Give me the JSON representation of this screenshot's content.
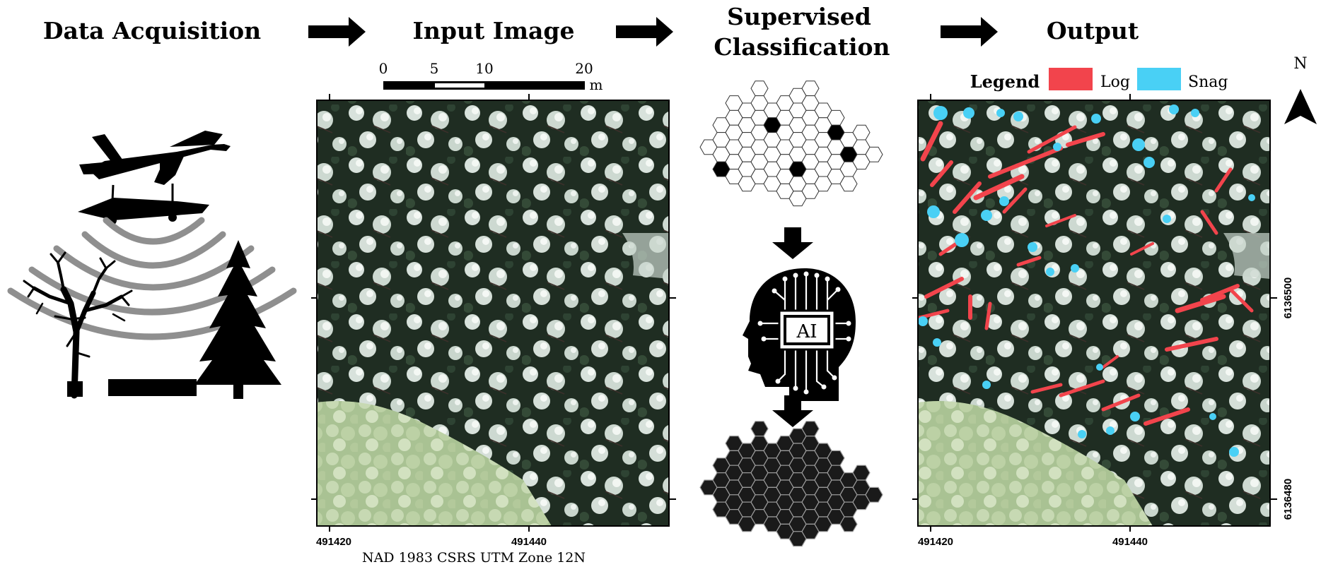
{
  "headers": {
    "data_acquisition": "Data Acquisition",
    "input_image": "Input Image",
    "supervised_line1": "Supervised",
    "supervised_line2": "Classification",
    "output": "Output"
  },
  "scale_bar": {
    "ticks": [
      "0",
      "5",
      "10",
      "20"
    ],
    "unit": "m"
  },
  "x_ticks": [
    "491420",
    "491440"
  ],
  "y_ticks": [
    "6136500",
    "6136480"
  ],
  "projection": "NAD 1983 CSRS UTM Zone 12N",
  "ai_chip_text": "AI",
  "legend": {
    "title": "Legend",
    "items": [
      {
        "label": "Log",
        "color": "#f2444c"
      },
      {
        "label": "Snag",
        "color": "#49d0f5"
      }
    ]
  },
  "north_label": "N",
  "colors": {
    "arrow": "#000000",
    "forest_dark": "#1c2a1f",
    "canopy": "#dfe8e1",
    "meadow": "#b9cfa4"
  }
}
